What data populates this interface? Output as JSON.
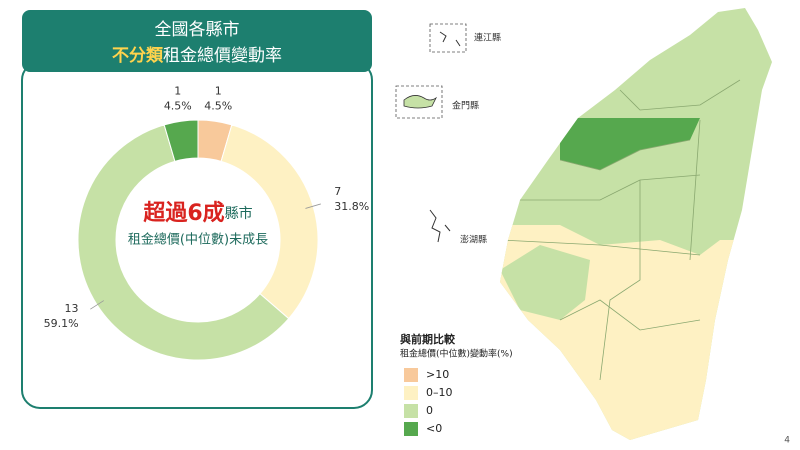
{
  "header": {
    "line1": "全國各縣市",
    "highlight": "不分類",
    "rest": "租金總價變動率"
  },
  "chart_data": {
    "type": "donut",
    "categories": [
      ">10",
      "0–10",
      "0",
      "<0"
    ],
    "values": [
      1,
      7,
      13,
      1
    ],
    "percent_labels": [
      "4.5%",
      "31.8%",
      "59.1%",
      "4.5%"
    ],
    "colors": [
      "#f8c99b",
      "#fef1c3",
      "#c6e1a6",
      "#56a84e"
    ],
    "center_highlight": "超過6成",
    "center_suffix": "縣市",
    "center_line2": "租金總價(中位數)未成長"
  },
  "map": {
    "islands": [
      "連江縣",
      "金門縣",
      "澎湖縣"
    ],
    "legend_title": "與前期比較",
    "legend_subtitle": "租金總價(中位數)變動率(%)"
  },
  "page_number": "4"
}
